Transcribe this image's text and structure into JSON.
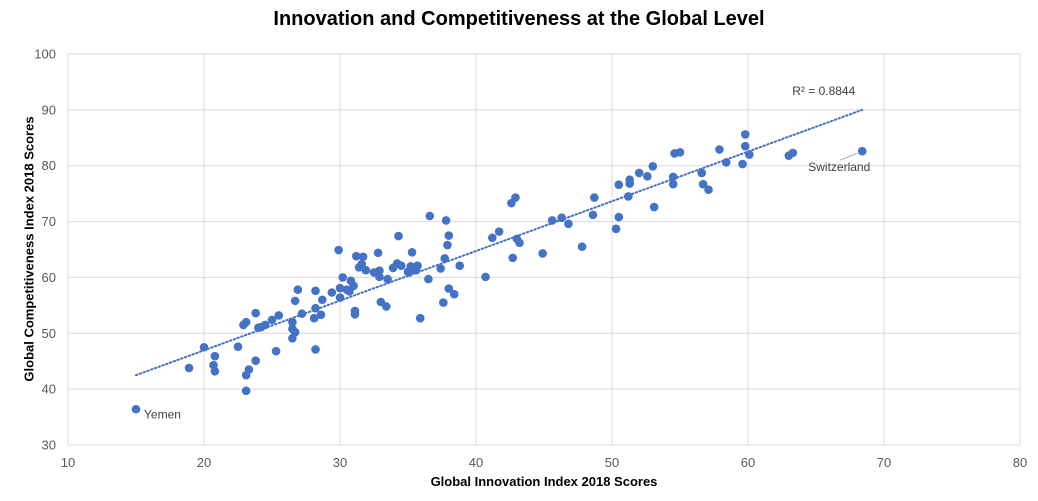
{
  "chart_data": {
    "type": "scatter",
    "title": "Innovation and Competitiveness at the Global Level",
    "xlabel": "Global Innovation Index 2018 Scores",
    "ylabel": "Global Competitiveness Index 2018 Scores",
    "xlim": [
      10,
      80
    ],
    "ylim": [
      30,
      100
    ],
    "xticks": [
      10,
      20,
      30,
      40,
      50,
      60,
      70,
      80
    ],
    "yticks": [
      30,
      40,
      50,
      60,
      70,
      80,
      90,
      100
    ],
    "grid": true,
    "legend": "none",
    "colors": {
      "points": "#4472C4",
      "trendline": "#4472C4",
      "grid": "#d9d9d9"
    },
    "trendline": {
      "type": "linear",
      "x": [
        15.0,
        68.4
      ],
      "y": [
        42.5,
        90.0
      ],
      "label": "R² = 0.8844",
      "style": "dotted"
    },
    "annotations": [
      {
        "text": "Yemen",
        "x": 15.0,
        "y": 36.4
      },
      {
        "text": "Switzerland",
        "x": 68.4,
        "y": 82.6
      }
    ],
    "points": [
      [
        15.0,
        36.4
      ],
      [
        18.9,
        43.8
      ],
      [
        20.0,
        47.5
      ],
      [
        20.7,
        44.3
      ],
      [
        20.8,
        45.9
      ],
      [
        20.8,
        43.2
      ],
      [
        22.5,
        47.6
      ],
      [
        22.9,
        51.5
      ],
      [
        23.1,
        52.0
      ],
      [
        23.1,
        39.7
      ],
      [
        23.1,
        42.5
      ],
      [
        23.3,
        43.5
      ],
      [
        23.8,
        53.6
      ],
      [
        23.8,
        45.1
      ],
      [
        24.0,
        51.0
      ],
      [
        24.2,
        51.1
      ],
      [
        24.5,
        51.5
      ],
      [
        25.0,
        52.4
      ],
      [
        25.3,
        46.8
      ],
      [
        25.5,
        53.2
      ],
      [
        26.5,
        52.0
      ],
      [
        26.5,
        49.1
      ],
      [
        26.5,
        50.8
      ],
      [
        26.7,
        55.8
      ],
      [
        26.7,
        50.2
      ],
      [
        26.9,
        57.8
      ],
      [
        27.2,
        53.5
      ],
      [
        28.1,
        52.7
      ],
      [
        28.2,
        57.6
      ],
      [
        28.2,
        54.5
      ],
      [
        28.2,
        47.1
      ],
      [
        28.6,
        53.3
      ],
      [
        28.7,
        56.0
      ],
      [
        29.4,
        57.3
      ],
      [
        29.9,
        64.9
      ],
      [
        30.0,
        58.1
      ],
      [
        30.0,
        56.4
      ],
      [
        30.2,
        60.0
      ],
      [
        30.5,
        57.8
      ],
      [
        30.7,
        57.5
      ],
      [
        30.8,
        59.4
      ],
      [
        31.0,
        58.5
      ],
      [
        31.1,
        54.0
      ],
      [
        31.1,
        53.4
      ],
      [
        31.2,
        63.8
      ],
      [
        31.4,
        61.8
      ],
      [
        31.6,
        62.4
      ],
      [
        31.7,
        63.7
      ],
      [
        31.9,
        61.3
      ],
      [
        32.5,
        60.9
      ],
      [
        32.8,
        64.4
      ],
      [
        32.9,
        61.2
      ],
      [
        32.9,
        60.1
      ],
      [
        33.0,
        55.6
      ],
      [
        33.4,
        54.8
      ],
      [
        33.5,
        59.7
      ],
      [
        33.9,
        61.7
      ],
      [
        34.2,
        62.5
      ],
      [
        34.3,
        67.4
      ],
      [
        34.5,
        62.1
      ],
      [
        35.0,
        61.0
      ],
      [
        35.1,
        60.9
      ],
      [
        35.2,
        62.0
      ],
      [
        35.3,
        64.5
      ],
      [
        35.6,
        61.3
      ],
      [
        35.7,
        62.1
      ],
      [
        35.9,
        52.7
      ],
      [
        36.5,
        59.7
      ],
      [
        36.6,
        71.0
      ],
      [
        37.4,
        61.6
      ],
      [
        37.6,
        55.5
      ],
      [
        37.7,
        63.4
      ],
      [
        37.8,
        70.2
      ],
      [
        37.9,
        65.8
      ],
      [
        38.0,
        67.5
      ],
      [
        38.0,
        58.0
      ],
      [
        38.4,
        57.0
      ],
      [
        38.8,
        62.1
      ],
      [
        40.7,
        60.1
      ],
      [
        41.2,
        67.1
      ],
      [
        41.7,
        68.2
      ],
      [
        42.6,
        73.3
      ],
      [
        42.7,
        63.5
      ],
      [
        42.9,
        74.3
      ],
      [
        43.0,
        66.9
      ],
      [
        43.2,
        66.2
      ],
      [
        44.9,
        64.3
      ],
      [
        45.6,
        70.2
      ],
      [
        46.3,
        70.7
      ],
      [
        46.8,
        69.6
      ],
      [
        47.8,
        65.5
      ],
      [
        48.6,
        71.2
      ],
      [
        48.7,
        74.3
      ],
      [
        50.3,
        68.7
      ],
      [
        50.5,
        70.8
      ],
      [
        50.5,
        76.6
      ],
      [
        51.2,
        74.5
      ],
      [
        51.3,
        77.5
      ],
      [
        51.3,
        76.8
      ],
      [
        52.0,
        78.7
      ],
      [
        52.6,
        78.1
      ],
      [
        53.0,
        79.9
      ],
      [
        53.1,
        72.6
      ],
      [
        54.5,
        78.0
      ],
      [
        54.5,
        76.7
      ],
      [
        54.6,
        82.2
      ],
      [
        55.0,
        82.4
      ],
      [
        56.6,
        78.7
      ],
      [
        56.7,
        76.7
      ],
      [
        57.1,
        75.7
      ],
      [
        57.9,
        82.9
      ],
      [
        58.4,
        80.6
      ],
      [
        59.6,
        80.3
      ],
      [
        59.8,
        85.6
      ],
      [
        59.8,
        83.5
      ],
      [
        60.1,
        82.0
      ],
      [
        63.0,
        81.8
      ],
      [
        63.3,
        82.3
      ],
      [
        68.4,
        82.6
      ]
    ]
  }
}
